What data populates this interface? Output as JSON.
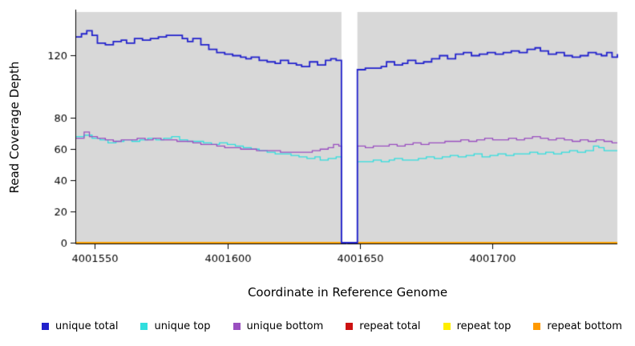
{
  "chart_data": {
    "type": "line",
    "title": "",
    "xlabel": "Coordinate in Reference Genome",
    "ylabel": "Read Coverage Depth",
    "xlim": [
      4001543,
      4001747
    ],
    "ylim": [
      0,
      148
    ],
    "x_ticks": [
      4001550,
      4001600,
      4001650,
      4001700
    ],
    "y_ticks": [
      0,
      20,
      40,
      60,
      80,
      120
    ],
    "panel_background": "#d8d8d8",
    "gap_region": {
      "x_start": 4001643,
      "x_end": 4001649
    },
    "step_interpolation": true,
    "grid": "off",
    "legend_position": "bottom",
    "series": [
      {
        "name": "repeat total",
        "color": "#cc1111",
        "line_width": 1.3,
        "points": [
          [
            4001543,
            0
          ],
          [
            4001747,
            0
          ]
        ]
      },
      {
        "name": "repeat top",
        "color": "#ffee00",
        "line_width": 1.3,
        "points": [
          [
            4001543,
            0
          ],
          [
            4001747,
            0
          ]
        ]
      },
      {
        "name": "repeat bottom",
        "color": "#ff9900",
        "line_width": 1.6,
        "points": [
          [
            4001543,
            0
          ],
          [
            4001747,
            0
          ]
        ]
      },
      {
        "name": "unique top",
        "color": "#30dede",
        "line_width": 1.3,
        "points": [
          [
            4001543,
            68
          ],
          [
            4001546,
            69
          ],
          [
            4001549,
            67
          ],
          [
            4001552,
            66
          ],
          [
            4001555,
            64
          ],
          [
            4001558,
            65
          ],
          [
            4001561,
            66
          ],
          [
            4001564,
            65
          ],
          [
            4001567,
            66
          ],
          [
            4001570,
            67
          ],
          [
            4001573,
            66
          ],
          [
            4001576,
            67
          ],
          [
            4001579,
            68
          ],
          [
            4001582,
            66
          ],
          [
            4001585,
            65
          ],
          [
            4001588,
            65
          ],
          [
            4001591,
            64
          ],
          [
            4001594,
            63
          ],
          [
            4001597,
            64
          ],
          [
            4001600,
            63
          ],
          [
            4001603,
            62
          ],
          [
            4001606,
            61
          ],
          [
            4001609,
            60
          ],
          [
            4001612,
            59
          ],
          [
            4001615,
            58
          ],
          [
            4001618,
            57
          ],
          [
            4001621,
            57
          ],
          [
            4001624,
            56
          ],
          [
            4001627,
            55
          ],
          [
            4001630,
            54
          ],
          [
            4001633,
            55
          ],
          [
            4001635,
            53
          ],
          [
            4001638,
            54
          ],
          [
            4001641,
            55
          ],
          [
            4001643,
            0
          ],
          [
            4001649,
            52
          ],
          [
            4001652,
            52
          ],
          [
            4001655,
            53
          ],
          [
            4001658,
            52
          ],
          [
            4001661,
            53
          ],
          [
            4001663,
            54
          ],
          [
            4001666,
            53
          ],
          [
            4001669,
            53
          ],
          [
            4001672,
            54
          ],
          [
            4001675,
            55
          ],
          [
            4001678,
            54
          ],
          [
            4001681,
            55
          ],
          [
            4001684,
            56
          ],
          [
            4001687,
            55
          ],
          [
            4001690,
            56
          ],
          [
            4001693,
            57
          ],
          [
            4001696,
            55
          ],
          [
            4001699,
            56
          ],
          [
            4001702,
            57
          ],
          [
            4001705,
            56
          ],
          [
            4001708,
            57
          ],
          [
            4001711,
            57
          ],
          [
            4001714,
            58
          ],
          [
            4001717,
            57
          ],
          [
            4001720,
            58
          ],
          [
            4001723,
            57
          ],
          [
            4001726,
            58
          ],
          [
            4001729,
            59
          ],
          [
            4001732,
            58
          ],
          [
            4001735,
            59
          ],
          [
            4001738,
            62
          ],
          [
            4001740,
            61
          ],
          [
            4001742,
            59
          ],
          [
            4001745,
            59
          ],
          [
            4001747,
            59
          ]
        ]
      },
      {
        "name": "unique bottom",
        "color": "#9a4fc0",
        "line_width": 1.3,
        "points": [
          [
            4001543,
            67
          ],
          [
            4001546,
            71
          ],
          [
            4001548,
            68
          ],
          [
            4001551,
            67
          ],
          [
            4001554,
            66
          ],
          [
            4001557,
            65
          ],
          [
            4001560,
            66
          ],
          [
            4001563,
            66
          ],
          [
            4001566,
            67
          ],
          [
            4001569,
            66
          ],
          [
            4001572,
            67
          ],
          [
            4001575,
            66
          ],
          [
            4001578,
            66
          ],
          [
            4001581,
            65
          ],
          [
            4001584,
            65
          ],
          [
            4001587,
            64
          ],
          [
            4001590,
            63
          ],
          [
            4001593,
            63
          ],
          [
            4001596,
            62
          ],
          [
            4001599,
            61
          ],
          [
            4001602,
            61
          ],
          [
            4001605,
            60
          ],
          [
            4001608,
            60
          ],
          [
            4001611,
            59
          ],
          [
            4001614,
            59
          ],
          [
            4001617,
            59
          ],
          [
            4001620,
            58
          ],
          [
            4001623,
            58
          ],
          [
            4001626,
            58
          ],
          [
            4001629,
            58
          ],
          [
            4001632,
            59
          ],
          [
            4001635,
            60
          ],
          [
            4001638,
            61
          ],
          [
            4001640,
            63
          ],
          [
            4001642,
            62
          ],
          [
            4001643,
            0
          ],
          [
            4001649,
            62
          ],
          [
            4001652,
            61
          ],
          [
            4001655,
            62
          ],
          [
            4001658,
            62
          ],
          [
            4001661,
            63
          ],
          [
            4001664,
            62
          ],
          [
            4001667,
            63
          ],
          [
            4001670,
            64
          ],
          [
            4001673,
            63
          ],
          [
            4001676,
            64
          ],
          [
            4001679,
            64
          ],
          [
            4001682,
            65
          ],
          [
            4001685,
            65
          ],
          [
            4001688,
            66
          ],
          [
            4001691,
            65
          ],
          [
            4001694,
            66
          ],
          [
            4001697,
            67
          ],
          [
            4001700,
            66
          ],
          [
            4001703,
            66
          ],
          [
            4001706,
            67
          ],
          [
            4001709,
            66
          ],
          [
            4001712,
            67
          ],
          [
            4001715,
            68
          ],
          [
            4001718,
            67
          ],
          [
            4001721,
            66
          ],
          [
            4001724,
            67
          ],
          [
            4001727,
            66
          ],
          [
            4001730,
            65
          ],
          [
            4001733,
            66
          ],
          [
            4001736,
            65
          ],
          [
            4001739,
            66
          ],
          [
            4001742,
            65
          ],
          [
            4001745,
            64
          ],
          [
            4001747,
            64
          ]
        ]
      },
      {
        "name": "unique total",
        "color": "#2222cc",
        "line_width": 1.8,
        "points": [
          [
            4001543,
            132
          ],
          [
            4001545,
            134
          ],
          [
            4001547,
            136
          ],
          [
            4001549,
            133
          ],
          [
            4001551,
            128
          ],
          [
            4001554,
            127
          ],
          [
            4001557,
            129
          ],
          [
            4001560,
            130
          ],
          [
            4001562,
            128
          ],
          [
            4001565,
            131
          ],
          [
            4001568,
            130
          ],
          [
            4001571,
            131
          ],
          [
            4001574,
            132
          ],
          [
            4001577,
            133
          ],
          [
            4001580,
            133
          ],
          [
            4001583,
            131
          ],
          [
            4001585,
            129
          ],
          [
            4001587,
            131
          ],
          [
            4001590,
            127
          ],
          [
            4001593,
            124
          ],
          [
            4001596,
            122
          ],
          [
            4001599,
            121
          ],
          [
            4001602,
            120
          ],
          [
            4001605,
            119
          ],
          [
            4001607,
            118
          ],
          [
            4001609,
            119
          ],
          [
            4001612,
            117
          ],
          [
            4001615,
            116
          ],
          [
            4001618,
            115
          ],
          [
            4001620,
            117
          ],
          [
            4001623,
            115
          ],
          [
            4001626,
            114
          ],
          [
            4001628,
            113
          ],
          [
            4001631,
            116
          ],
          [
            4001634,
            114
          ],
          [
            4001637,
            117
          ],
          [
            4001639,
            118
          ],
          [
            4001641,
            117
          ],
          [
            4001643,
            0
          ],
          [
            4001649,
            111
          ],
          [
            4001652,
            112
          ],
          [
            4001655,
            112
          ],
          [
            4001658,
            113
          ],
          [
            4001660,
            116
          ],
          [
            4001663,
            114
          ],
          [
            4001666,
            115
          ],
          [
            4001668,
            117
          ],
          [
            4001671,
            115
          ],
          [
            4001674,
            116
          ],
          [
            4001677,
            118
          ],
          [
            4001680,
            120
          ],
          [
            4001683,
            118
          ],
          [
            4001686,
            121
          ],
          [
            4001689,
            122
          ],
          [
            4001692,
            120
          ],
          [
            4001695,
            121
          ],
          [
            4001698,
            122
          ],
          [
            4001701,
            121
          ],
          [
            4001704,
            122
          ],
          [
            4001707,
            123
          ],
          [
            4001710,
            122
          ],
          [
            4001713,
            124
          ],
          [
            4001716,
            125
          ],
          [
            4001718,
            123
          ],
          [
            4001721,
            121
          ],
          [
            4001724,
            122
          ],
          [
            4001727,
            120
          ],
          [
            4001730,
            119
          ],
          [
            4001733,
            120
          ],
          [
            4001736,
            122
          ],
          [
            4001739,
            121
          ],
          [
            4001741,
            120
          ],
          [
            4001743,
            122
          ],
          [
            4001745,
            119
          ],
          [
            4001747,
            121
          ]
        ]
      }
    ]
  },
  "legend": {
    "items": [
      {
        "label": "unique total",
        "color": "#2222cc"
      },
      {
        "label": "unique top",
        "color": "#30dede"
      },
      {
        "label": "unique bottom",
        "color": "#9a4fc0"
      },
      {
        "label": "repeat total",
        "color": "#cc1111"
      },
      {
        "label": "repeat top",
        "color": "#ffee00"
      },
      {
        "label": "repeat bottom",
        "color": "#ff9900"
      }
    ]
  }
}
